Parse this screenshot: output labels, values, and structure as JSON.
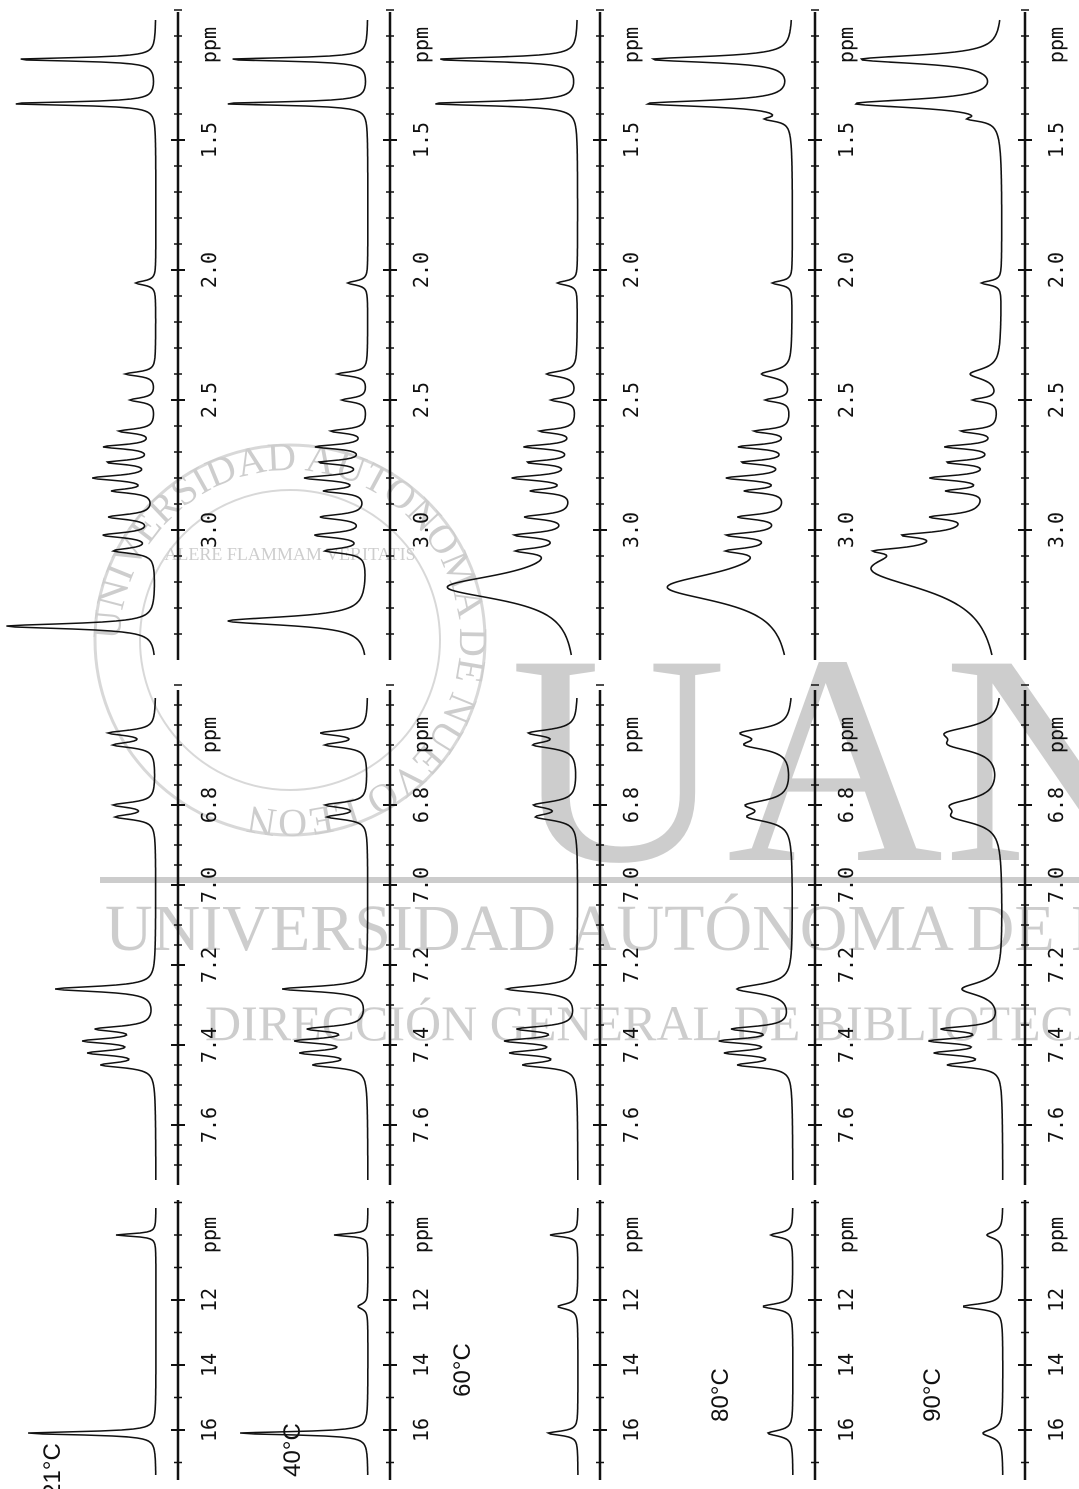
{
  "panels": [
    {
      "label": "21°C"
    },
    {
      "label": "40°C"
    },
    {
      "label": "60°C"
    },
    {
      "label": "80°C"
    },
    {
      "label": "90°C"
    }
  ],
  "scales": [
    {
      "unit": "ppm",
      "ticks": [
        "1.5",
        "2.0",
        "2.5",
        "3.0"
      ]
    },
    {
      "unit": "ppm",
      "ticks": [
        "6.8",
        "7.0",
        "7.2",
        "7.4",
        "7.6"
      ]
    },
    {
      "unit": "ppm",
      "ticks": [
        "12",
        "14",
        "16"
      ]
    }
  ],
  "watermark": {
    "logo": "UANL",
    "seal_motto": "ALERE FLAMMAM VERITATIS",
    "seal_ring": "UNIVERSIDAD AUTONOMA DE NUEVO LEON",
    "institution": "UNIVERSIDAD AUTÓNOMA DE NUEVO LEÓN",
    "department": "DIRECCIÓN GENERAL DE BIBLIOTECAS"
  }
}
